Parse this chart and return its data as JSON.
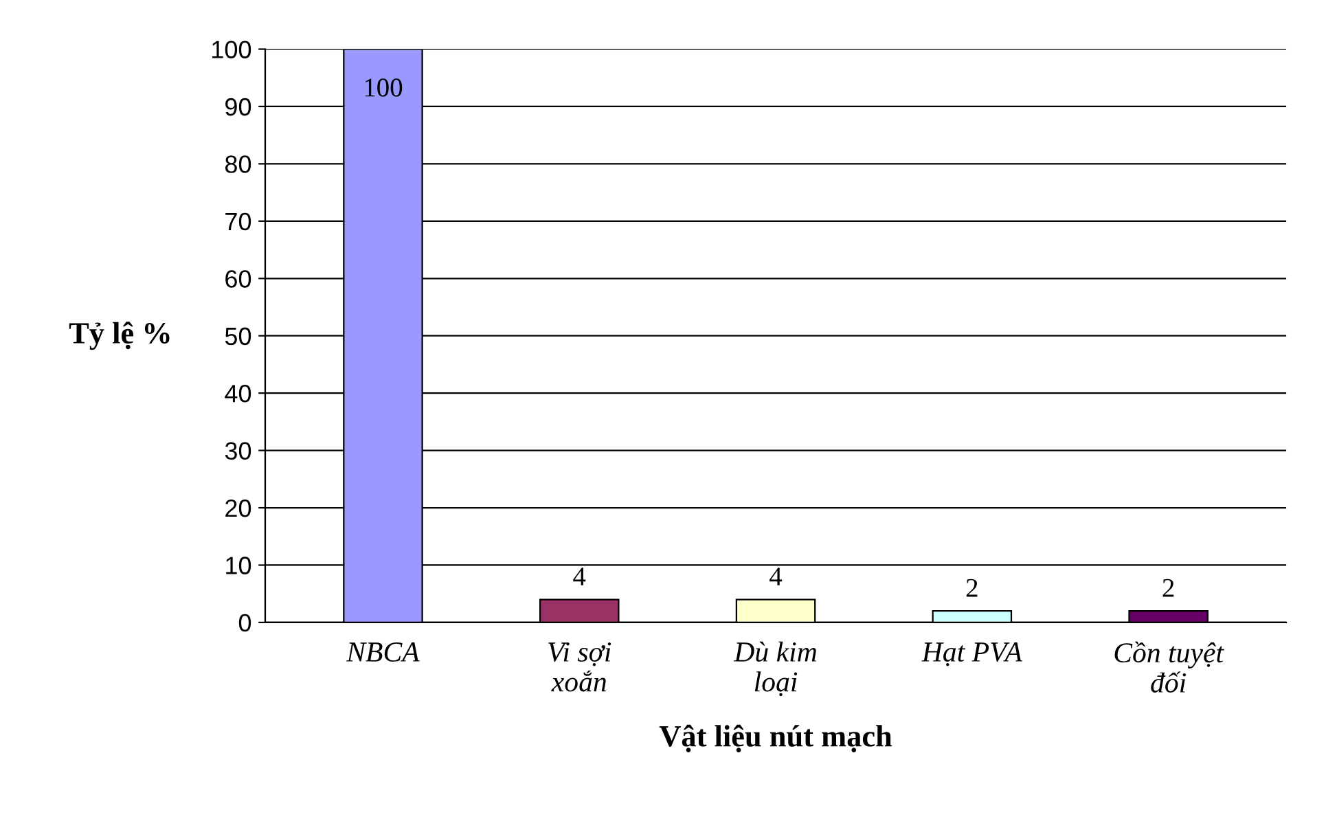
{
  "chart_data": {
    "type": "bar",
    "xlabel": "Vật liệu nút mạch",
    "ylabel": "Tỷ lệ %",
    "categories": [
      "NBCA",
      "Vi sợi xoắn",
      "Dù kim loại",
      "Hạt PVA",
      "Cồn tuyệt đối"
    ],
    "values": [
      100,
      4,
      4,
      2,
      2
    ],
    "colors": [
      "#9999ff",
      "#993366",
      "#ffffcc",
      "#ccffff",
      "#660066"
    ],
    "ylim": [
      0,
      100
    ],
    "yticks": [
      0,
      10,
      20,
      30,
      40,
      50,
      60,
      70,
      80,
      90,
      100
    ],
    "grid": "y",
    "data_labels": true
  }
}
